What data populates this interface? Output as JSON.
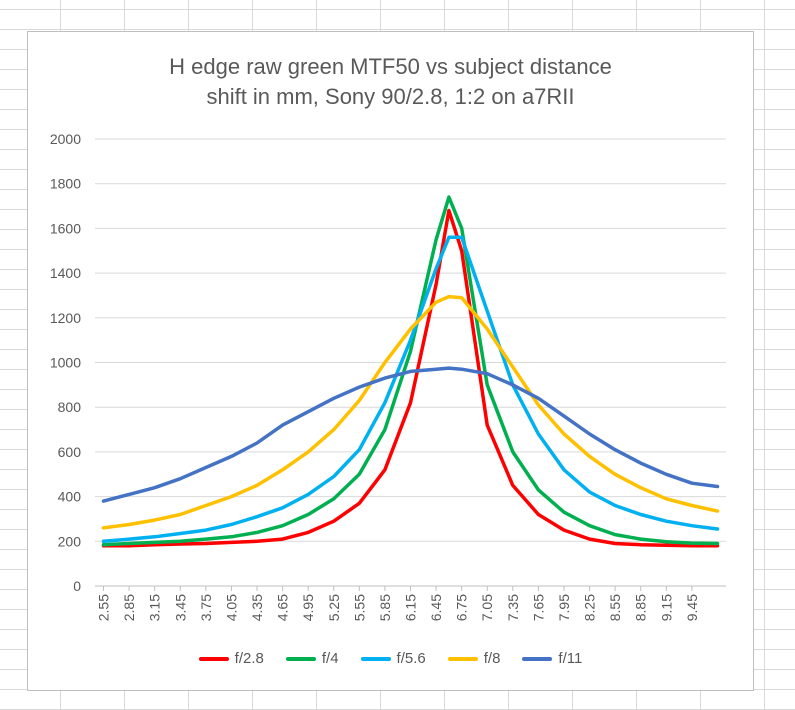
{
  "chart_data": {
    "type": "line",
    "title_line1": "H edge raw  green MTF50 vs subject distance",
    "title_line2": "shift in mm, Sony 90/2.8, 1:2 on a7RII",
    "xlabel": "",
    "ylabel": "",
    "ylim": [
      0,
      2000
    ],
    "yticks": [
      0,
      200,
      400,
      600,
      800,
      1000,
      1200,
      1400,
      1600,
      1800,
      2000
    ],
    "x_tick_labels": [
      "2.55",
      "2.85",
      "3.15",
      "3.45",
      "3.75",
      "4.05",
      "4.35",
      "4.65",
      "4.95",
      "5.25",
      "5.55",
      "5.85",
      "6.15",
      "6.45",
      "6.75",
      "7.05",
      "7.35",
      "7.65",
      "7.95",
      "8.25",
      "8.55",
      "8.85",
      "9.15",
      "9.45"
    ],
    "x": [
      2.55,
      2.85,
      3.15,
      3.45,
      3.75,
      4.05,
      4.35,
      4.65,
      4.95,
      5.25,
      5.55,
      5.85,
      6.15,
      6.45,
      6.6,
      6.75,
      7.05,
      7.35,
      7.65,
      7.95,
      8.25,
      8.55,
      8.85,
      9.15,
      9.45,
      9.75
    ],
    "grid": "horizontal",
    "legend_position": "bottom",
    "series": [
      {
        "name": "f/2.8",
        "color": "#ff0000",
        "values": [
          180,
          180,
          185,
          188,
          190,
          195,
          200,
          210,
          240,
          290,
          370,
          520,
          820,
          1350,
          1680,
          1500,
          720,
          450,
          320,
          250,
          210,
          190,
          185,
          182,
          180,
          180
        ]
      },
      {
        "name": "f/4",
        "color": "#00b050",
        "values": [
          185,
          190,
          195,
          200,
          210,
          220,
          240,
          270,
          320,
          390,
          500,
          700,
          1050,
          1550,
          1740,
          1600,
          900,
          600,
          430,
          330,
          270,
          230,
          210,
          198,
          192,
          190
        ]
      },
      {
        "name": "f/5.6",
        "color": "#00b0f0",
        "values": [
          200,
          210,
          220,
          235,
          250,
          275,
          310,
          350,
          410,
          490,
          610,
          820,
          1100,
          1420,
          1560,
          1560,
          1230,
          900,
          680,
          520,
          420,
          360,
          320,
          290,
          270,
          255
        ]
      },
      {
        "name": "f/8",
        "color": "#ffc000",
        "values": [
          260,
          275,
          295,
          320,
          360,
          400,
          450,
          520,
          600,
          700,
          830,
          1000,
          1150,
          1270,
          1295,
          1290,
          1150,
          980,
          810,
          680,
          580,
          500,
          440,
          390,
          360,
          335
        ]
      },
      {
        "name": "f/11",
        "color": "#4472c4",
        "values": [
          380,
          410,
          440,
          480,
          530,
          580,
          640,
          720,
          780,
          840,
          890,
          930,
          960,
          970,
          975,
          970,
          950,
          900,
          840,
          760,
          680,
          610,
          550,
          500,
          460,
          445
        ]
      }
    ]
  }
}
